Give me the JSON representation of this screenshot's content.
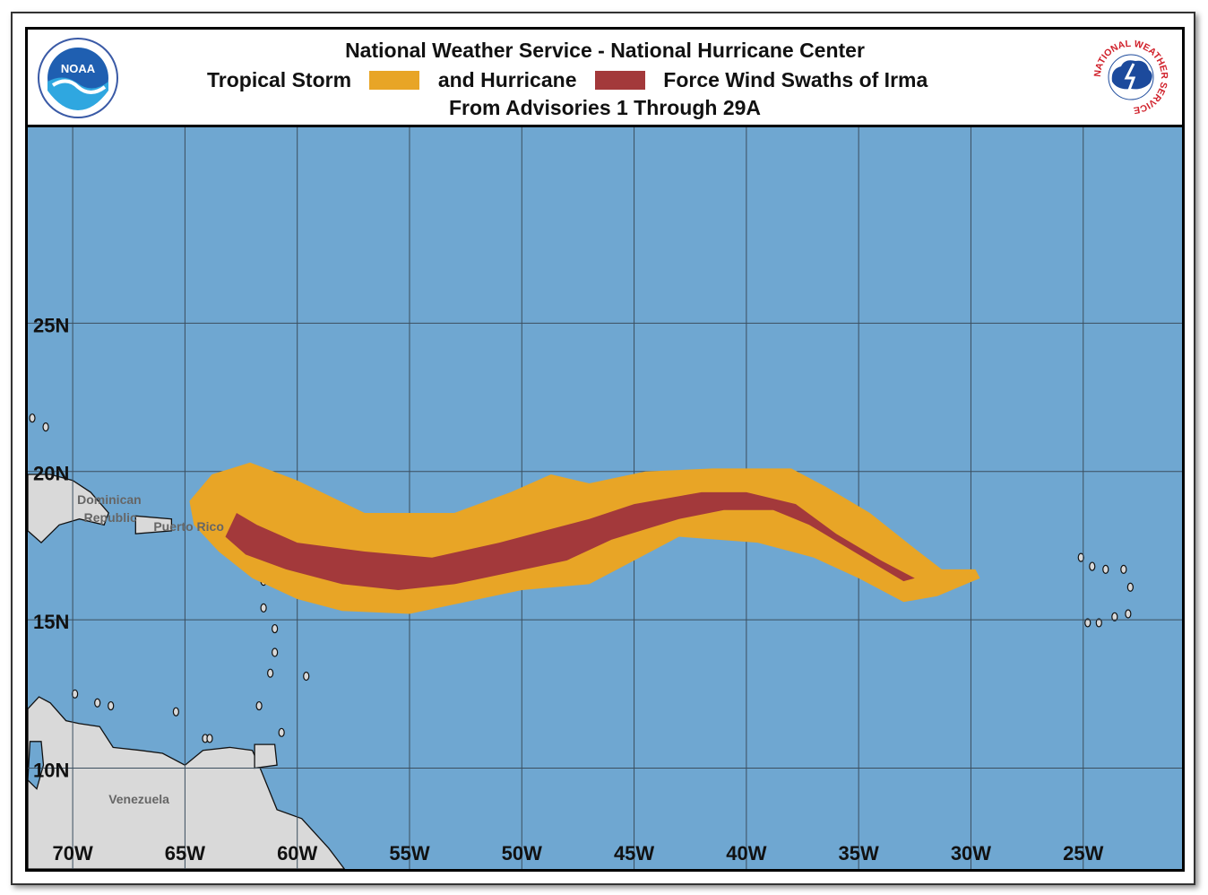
{
  "header": {
    "title": "National Weather Service - National Hurricane Center",
    "legend_ts_label": "Tropical Storm",
    "legend_and_label": "and Hurricane",
    "legend_force_label": "Force Wind Swaths of Irma",
    "subtitle": "From Advisories 1 Through 29A",
    "noaa_logo_text": "NOAA",
    "nws_logo_text": "NATIONAL WEATHER SERVICE"
  },
  "colors": {
    "ocean": "#6FA7D1",
    "land": "#D9D9D9",
    "tropical_storm": "#E8A526",
    "hurricane": "#A3393B",
    "grid": "#3B4E5E"
  },
  "map": {
    "lon_range": [
      -72,
      -20.6
    ],
    "lat_range": [
      6.6,
      31.6
    ],
    "lon_ticks": [
      {
        "value": -70,
        "label": "70W"
      },
      {
        "value": -65,
        "label": "65W"
      },
      {
        "value": -60,
        "label": "60W"
      },
      {
        "value": -55,
        "label": "55W"
      },
      {
        "value": -50,
        "label": "50W"
      },
      {
        "value": -45,
        "label": "45W"
      },
      {
        "value": -40,
        "label": "40W"
      },
      {
        "value": -35,
        "label": "35W"
      },
      {
        "value": -30,
        "label": "30W"
      },
      {
        "value": -25,
        "label": "25W"
      }
    ],
    "lat_ticks": [
      {
        "value": 25,
        "label": "25N"
      },
      {
        "value": 20,
        "label": "20N"
      },
      {
        "value": 15,
        "label": "15N"
      },
      {
        "value": 10,
        "label": "10N"
      }
    ],
    "place_labels": [
      {
        "name": "Dominican",
        "lon": -69.8,
        "lat": 18.9
      },
      {
        "name": "Republic",
        "lon": -69.5,
        "lat": 18.3
      },
      {
        "name": "Puerto Rico",
        "lon": -66.4,
        "lat": 18.0
      },
      {
        "name": "Venezuela",
        "lon": -68.4,
        "lat": 8.8
      }
    ],
    "tropical_storm_swath": [
      [
        -64.8,
        19.0
      ],
      [
        -63.8,
        19.9
      ],
      [
        -62.1,
        20.3
      ],
      [
        -60.0,
        19.7
      ],
      [
        -57.0,
        18.6
      ],
      [
        -53.0,
        18.6
      ],
      [
        -50.5,
        19.3
      ],
      [
        -48.7,
        19.9
      ],
      [
        -47.0,
        19.6
      ],
      [
        -44.5,
        20.0
      ],
      [
        -41.5,
        20.1
      ],
      [
        -38.0,
        20.1
      ],
      [
        -36.5,
        19.5
      ],
      [
        -34.5,
        18.6
      ],
      [
        -32.5,
        17.4
      ],
      [
        -31.3,
        16.7
      ],
      [
        -29.8,
        16.7
      ],
      [
        -29.6,
        16.4
      ],
      [
        -31.5,
        15.8
      ],
      [
        -33.0,
        15.6
      ],
      [
        -35.0,
        16.4
      ],
      [
        -37.0,
        17.1
      ],
      [
        -39.5,
        17.6
      ],
      [
        -43.0,
        17.8
      ],
      [
        -45.0,
        17.0
      ],
      [
        -47.0,
        16.2
      ],
      [
        -50.0,
        16.0
      ],
      [
        -52.5,
        15.6
      ],
      [
        -55.0,
        15.2
      ],
      [
        -58.0,
        15.3
      ],
      [
        -60.0,
        15.7
      ],
      [
        -62.0,
        16.4
      ],
      [
        -63.5,
        17.3
      ],
      [
        -64.6,
        18.2
      ]
    ],
    "hurricane_swath": [
      [
        -63.2,
        17.8
      ],
      [
        -62.7,
        18.6
      ],
      [
        -61.8,
        18.2
      ],
      [
        -60.0,
        17.6
      ],
      [
        -57.0,
        17.3
      ],
      [
        -54.0,
        17.1
      ],
      [
        -51.0,
        17.6
      ],
      [
        -49.0,
        18.0
      ],
      [
        -47.0,
        18.4
      ],
      [
        -45.0,
        18.9
      ],
      [
        -42.0,
        19.3
      ],
      [
        -40.0,
        19.3
      ],
      [
        -37.8,
        18.9
      ],
      [
        -36.0,
        17.9
      ],
      [
        -34.0,
        17.0
      ],
      [
        -32.5,
        16.4
      ],
      [
        -33.0,
        16.3
      ],
      [
        -35.0,
        17.2
      ],
      [
        -37.2,
        18.2
      ],
      [
        -38.8,
        18.7
      ],
      [
        -41.0,
        18.7
      ],
      [
        -43.0,
        18.4
      ],
      [
        -46.0,
        17.7
      ],
      [
        -48.0,
        17.0
      ],
      [
        -50.5,
        16.6
      ],
      [
        -53.0,
        16.2
      ],
      [
        -55.5,
        16.0
      ],
      [
        -58.0,
        16.2
      ],
      [
        -60.5,
        16.7
      ],
      [
        -62.3,
        17.2
      ]
    ],
    "land": {
      "south_america": [
        [
          -72,
          12.0
        ],
        [
          -71.5,
          12.4
        ],
        [
          -71.0,
          12.2
        ],
        [
          -70.3,
          11.6
        ],
        [
          -69.7,
          11.5
        ],
        [
          -68.8,
          11.4
        ],
        [
          -68.2,
          10.7
        ],
        [
          -67.0,
          10.6
        ],
        [
          -66.0,
          10.5
        ],
        [
          -65.0,
          10.1
        ],
        [
          -64.2,
          10.6
        ],
        [
          -63.0,
          10.7
        ],
        [
          -62.0,
          10.6
        ],
        [
          -61.6,
          9.9
        ],
        [
          -60.9,
          8.6
        ],
        [
          -59.8,
          8.3
        ],
        [
          -58.6,
          7.3
        ],
        [
          -57.9,
          6.6
        ],
        [
          -72,
          6.6
        ]
      ],
      "maracaibo": [
        [
          -71.9,
          10.9
        ],
        [
          -71.4,
          10.9
        ],
        [
          -71.3,
          10.1
        ],
        [
          -71.6,
          9.3
        ],
        [
          -72.0,
          9.6
        ]
      ],
      "hispaniola": [
        [
          -72,
          19.9
        ],
        [
          -71.0,
          19.9
        ],
        [
          -70.0,
          19.7
        ],
        [
          -69.2,
          19.3
        ],
        [
          -68.4,
          18.6
        ],
        [
          -68.6,
          18.2
        ],
        [
          -69.7,
          18.4
        ],
        [
          -70.6,
          18.2
        ],
        [
          -71.4,
          17.6
        ],
        [
          -72,
          18.0
        ]
      ],
      "puerto_rico": [
        [
          -67.2,
          18.5
        ],
        [
          -65.6,
          18.4
        ],
        [
          -65.6,
          18.0
        ],
        [
          -67.2,
          17.9
        ]
      ],
      "trinidad": [
        [
          -61.9,
          10.8
        ],
        [
          -61.0,
          10.8
        ],
        [
          -60.9,
          10.1
        ],
        [
          -61.9,
          10.0
        ]
      ],
      "small_islands": [
        [
          -61.7,
          17.1
        ],
        [
          -61.8,
          17.6
        ],
        [
          -62.7,
          17.3
        ],
        [
          -61.5,
          16.3
        ],
        [
          -61.5,
          15.4
        ],
        [
          -61.0,
          14.7
        ],
        [
          -61.0,
          13.9
        ],
        [
          -61.2,
          13.2
        ],
        [
          -61.7,
          12.1
        ],
        [
          -59.6,
          13.1
        ],
        [
          -60.7,
          11.2
        ],
        [
          -69.9,
          12.5
        ],
        [
          -68.9,
          12.2
        ],
        [
          -68.3,
          12.1
        ],
        [
          -65.4,
          11.9
        ],
        [
          -64.1,
          11.0
        ],
        [
          -63.9,
          11.0
        ],
        [
          -71.8,
          21.8
        ],
        [
          -71.2,
          21.5
        ],
        [
          -25.1,
          17.1
        ],
        [
          -24.6,
          16.8
        ],
        [
          -24.0,
          16.7
        ],
        [
          -23.2,
          16.7
        ],
        [
          -22.9,
          16.1
        ],
        [
          -23.6,
          15.1
        ],
        [
          -24.3,
          14.9
        ],
        [
          -24.8,
          14.9
        ],
        [
          -23.0,
          15.2
        ]
      ]
    }
  }
}
